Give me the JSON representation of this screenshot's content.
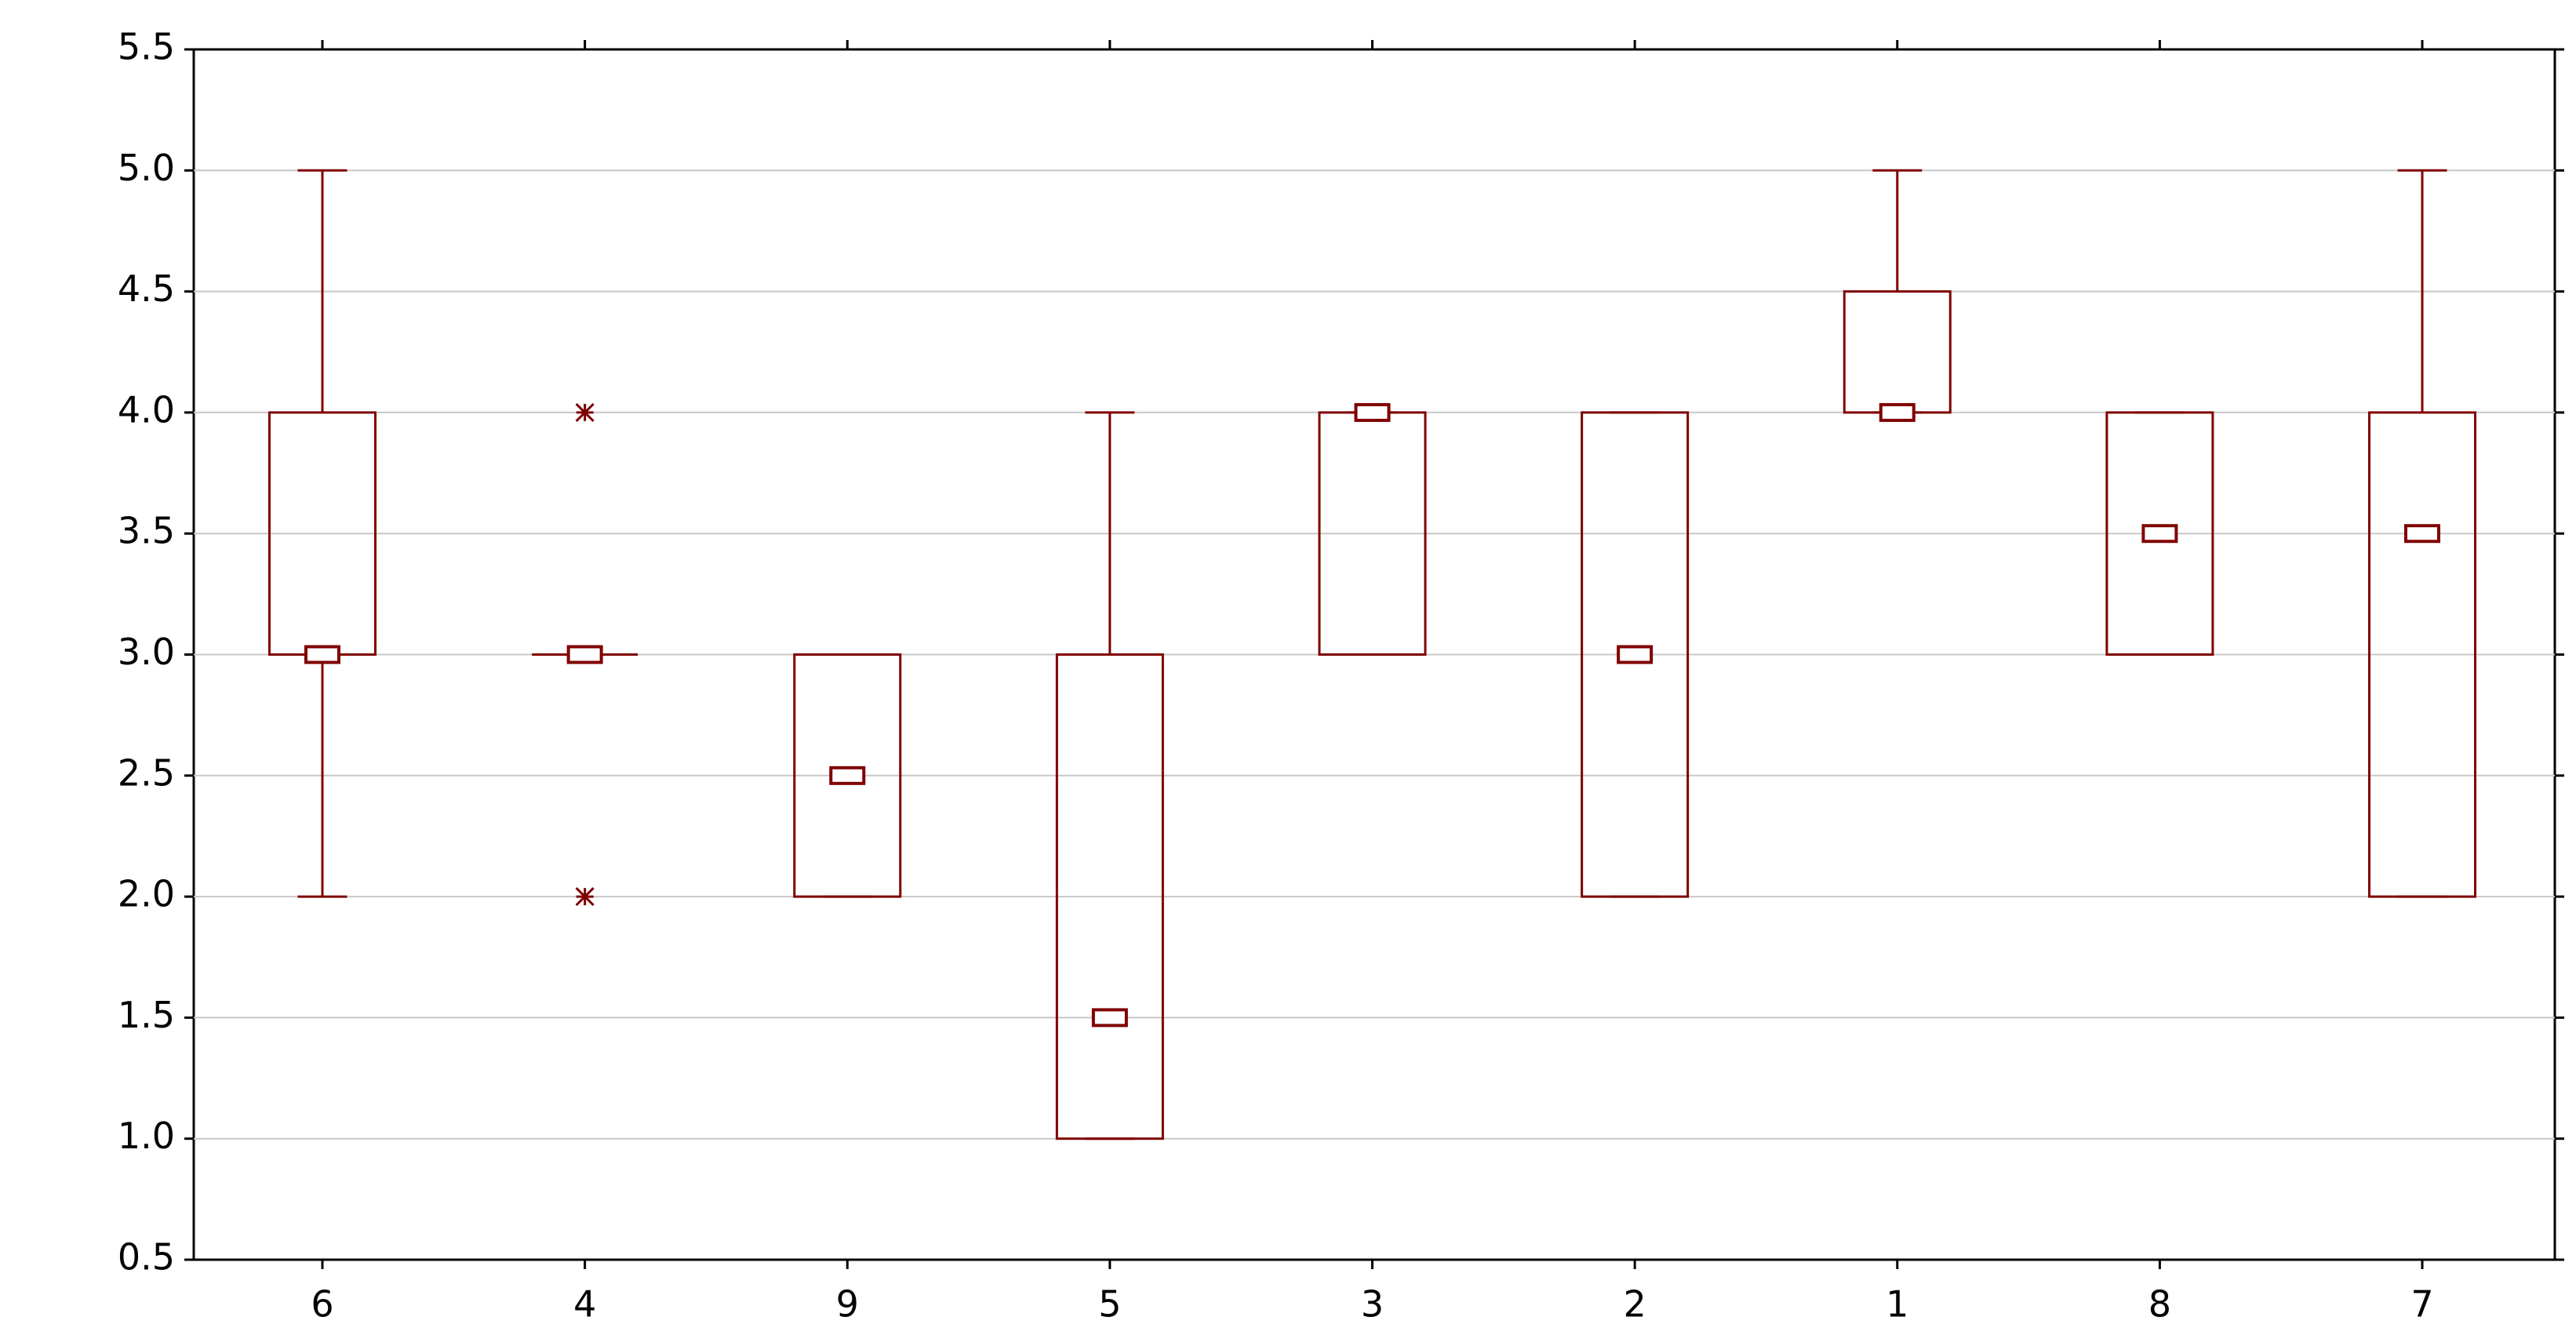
{
  "chart_data": {
    "type": "box",
    "categories": [
      "6",
      "4",
      "9",
      "5",
      "3",
      "2",
      "1",
      "8",
      "7"
    ],
    "median": [
      3,
      3,
      2.5,
      1.5,
      4,
      3,
      4,
      3.5,
      3.5
    ],
    "q1": [
      3,
      3,
      2,
      1,
      3,
      2,
      4,
      3,
      2
    ],
    "q3": [
      4,
      3,
      3,
      3,
      4,
      4,
      4.5,
      4,
      4
    ],
    "min": [
      2,
      3,
      2,
      1,
      3,
      2,
      4,
      3,
      2
    ],
    "max": [
      5,
      3,
      3,
      4,
      4,
      4,
      5,
      4,
      5
    ],
    "outliers": [
      [],
      [
        2,
        4
      ],
      [],
      [],
      [],
      [],
      [],
      [],
      []
    ],
    "color": "#800000",
    "ylim": [
      0.5,
      5.5
    ],
    "yticks": [
      0.5,
      {
        "value": 1,
        "label": "1.0"
      },
      1.5,
      {
        "value": 2,
        "label": "2.0"
      },
      2.5,
      {
        "value": 3,
        "label": "3.0"
      },
      3.5,
      {
        "value": 4,
        "label": "4.0"
      },
      4.5,
      {
        "value": 5,
        "label": "5.0"
      },
      5.5
    ],
    "grid": true
  }
}
